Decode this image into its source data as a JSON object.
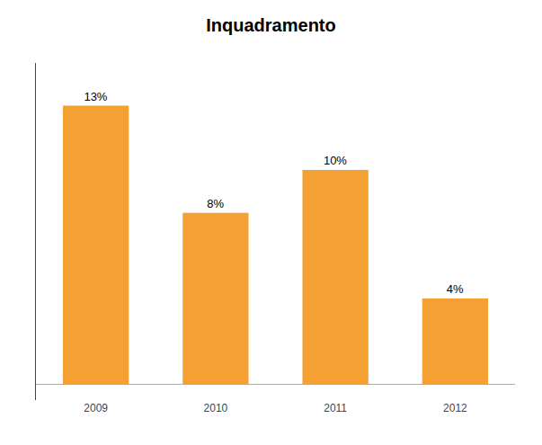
{
  "chart_data": {
    "type": "bar",
    "title": "Inquadramento",
    "categories": [
      "2009",
      "2010",
      "2011",
      "2012"
    ],
    "values": [
      13,
      8,
      10,
      4
    ],
    "value_labels": [
      "13%",
      "8%",
      "10%",
      "4%"
    ],
    "color": "#F5A033",
    "ylim": [
      -0.75,
      15
    ],
    "yticks": [],
    "grid": false,
    "data_labels": true,
    "tick_labels": "x"
  }
}
